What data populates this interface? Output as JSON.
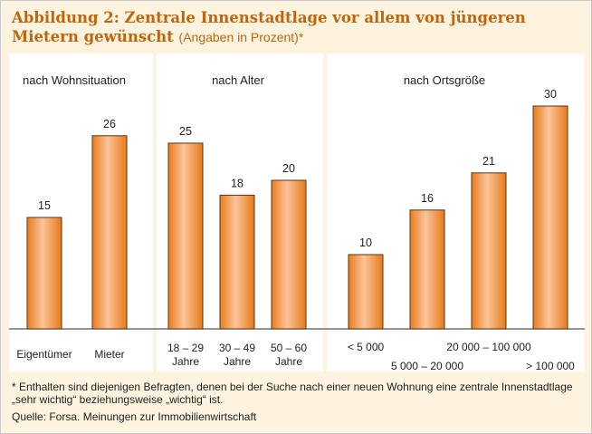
{
  "title": {
    "main": "Abbildung 2: Zentrale Innenstadtlage vor allem von jüngeren Mietern gewünscht",
    "note": "(Angaben in Prozent)*"
  },
  "chart_data": {
    "type": "bar",
    "groups": [
      {
        "label": "nach Wohnsituation",
        "categories": [
          "Eigentümer",
          "Mieter"
        ],
        "values": [
          15,
          26
        ]
      },
      {
        "label": "nach Alter",
        "categories": [
          "18 – 29 Jahre",
          "30 – 49 Jahre",
          "50 – 60 Jahre"
        ],
        "values": [
          25,
          18,
          20
        ]
      },
      {
        "label": "nach Ortsgröße",
        "categories": [
          "< 5 000",
          "5 000 – 20 000",
          "20 000 – 100 000",
          "> 100 000"
        ],
        "values": [
          10,
          16,
          21,
          30
        ]
      }
    ],
    "ylim": [
      0,
      35
    ],
    "bar_color": "#f0913a",
    "grid": false
  },
  "footnote": "* Enthalten sind diejenigen Befragten, denen bei der Suche nach einer neuen Wohnung eine zentrale Innenstadtlage „sehr wichtig“ beziehungsweise „wichtig“ ist.",
  "source": "Quelle: Forsa. Meinungen zur Immobilienwirtschaft"
}
